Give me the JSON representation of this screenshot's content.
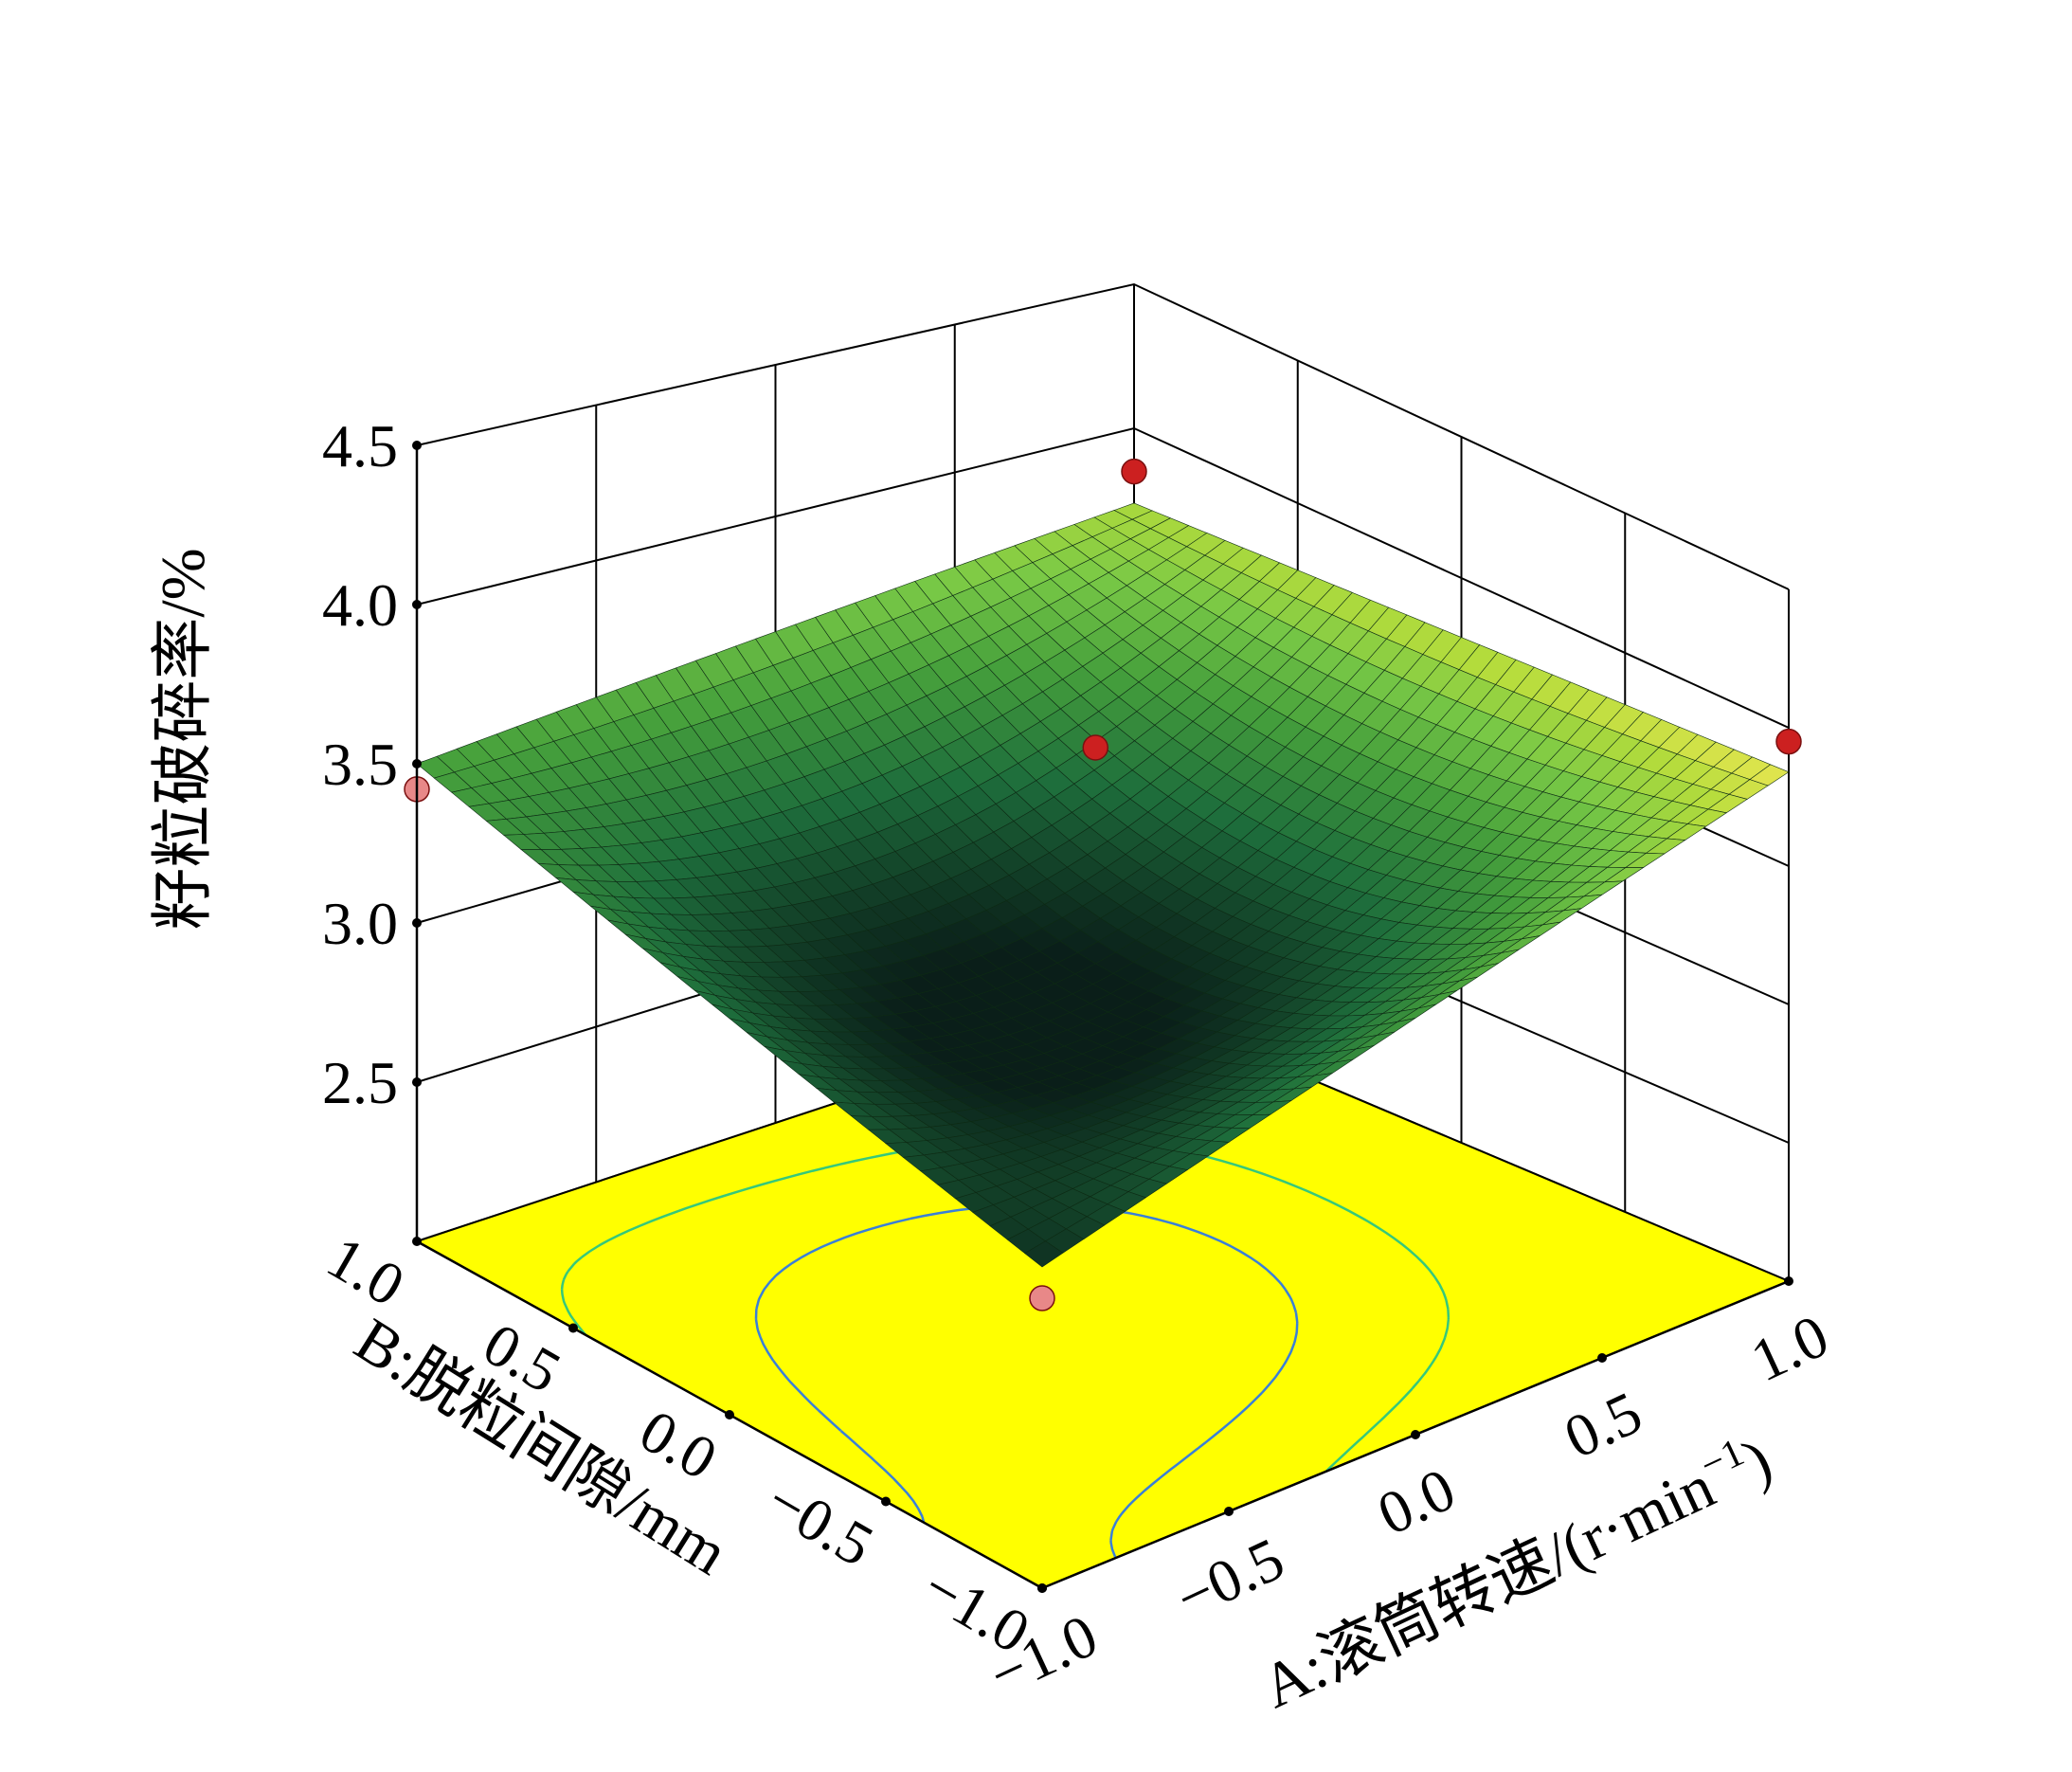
{
  "chart_data": {
    "type": "surface3d",
    "zlabel": "籽粒破碎率/%",
    "xlabel": "A:滚筒转速/(r·min",
    "xlabel_sup": "−1",
    "xlabel_close": ")",
    "ylabel": "B:脱粒间隙/mm",
    "x_ticks": [
      "−1.0",
      "−0.5",
      "0.0",
      "0.5",
      "1.0"
    ],
    "y_ticks": [
      "1.0",
      "0.5",
      "0.0",
      "−0.5",
      "−1.0"
    ],
    "z_ticks": [
      "2.5",
      "3.0",
      "3.5",
      "4.0",
      "4.5"
    ],
    "xlim": [
      -1,
      1
    ],
    "ylim": [
      -1,
      1
    ],
    "zlim": [
      2.5,
      4.5
    ],
    "z_axis_floor": 2.0,
    "surface_corners": {
      "A-1_B-1": 3.13,
      "A1_B-1": 3.84,
      "A-1_B1": 3.5,
      "A1_B1": 3.74
    },
    "surface_min": 3.08,
    "design_points": [
      {
        "A": -1,
        "B": -1,
        "z": 3.02
      },
      {
        "A": 1,
        "B": -1,
        "z": 3.95
      },
      {
        "A": -1,
        "B": 1,
        "z": 3.42
      },
      {
        "A": 1,
        "B": 1,
        "z": 3.85
      },
      {
        "A": 0,
        "B": 0,
        "z": 3.82
      }
    ],
    "contour_levels": [
      3.2,
      3.4
    ],
    "colors": {
      "floor": "#ffff00",
      "point": "#cc2020",
      "point_light": "#e88888",
      "contour_low": "#3a7fd8",
      "contour_high": "#36c87a"
    }
  }
}
